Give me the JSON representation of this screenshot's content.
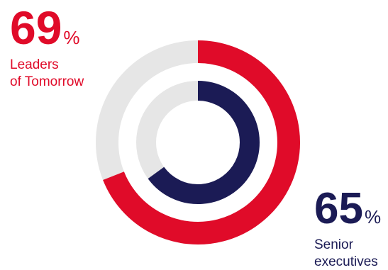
{
  "chart_data": {
    "type": "donut",
    "series": [
      {
        "name": "Leaders of Tomorrow",
        "value": 69,
        "unit": "%",
        "color": "#e00b29",
        "ring": "outer"
      },
      {
        "name": "Senior executives",
        "value": 65,
        "unit": "%",
        "color": "#1b1b55",
        "ring": "inner"
      }
    ],
    "track_color": "#e6e6e6"
  },
  "stats": {
    "leaders": {
      "value": "69",
      "unit": "%",
      "label_line1": "Leaders",
      "label_line2": "of Tomorrow"
    },
    "senior": {
      "value": "65",
      "unit": "%",
      "label_line1": "Senior",
      "label_line2": "executives"
    }
  }
}
